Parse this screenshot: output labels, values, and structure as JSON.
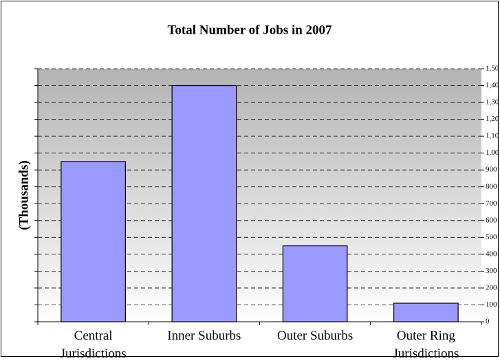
{
  "chart_data": {
    "type": "bar",
    "title": "Total Number of Jobs in 2007",
    "y_label": "(Thousands)",
    "categories": [
      "Central Jurisdictions",
      "Inner Suburbs",
      "Outer Suburbs",
      "Outer Ring Jurisdictions"
    ],
    "values": [
      950,
      1400,
      450,
      110
    ],
    "color": "#9999ff",
    "ylim": [
      0,
      1500
    ],
    "yticks": [
      0,
      100,
      200,
      300,
      400,
      500,
      600,
      700,
      800,
      900,
      {
        "value": 1000,
        "label": "1,00"
      },
      {
        "value": 1100,
        "label": "1,10"
      },
      {
        "value": 1200,
        "label": "1,20"
      },
      {
        "value": 1300,
        "label": "1,30"
      },
      {
        "value": 1400,
        "label": "1,40"
      },
      {
        "value": 1500,
        "label": "1,50"
      }
    ],
    "grid": true
  }
}
